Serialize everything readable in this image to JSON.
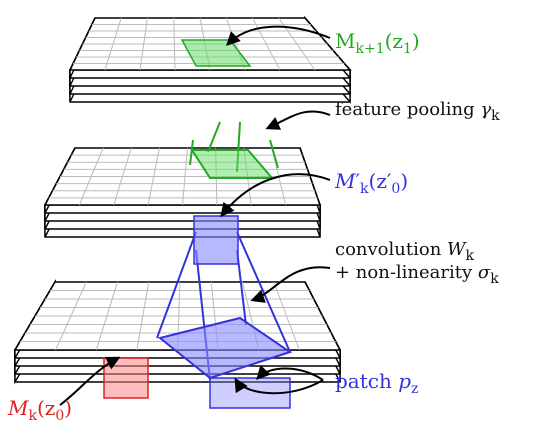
{
  "labels": {
    "top_map": {
      "base": "M",
      "sub": "k+1",
      "arg": "(z",
      "argsub": "1",
      "close": ")"
    },
    "pooling": {
      "text": "feature pooling ",
      "sym": "γ",
      "sub": "k"
    },
    "mid_map": {
      "base": "M",
      "prime": "′",
      "sub": "k",
      "arg": "(z′",
      "argsub": "0",
      "close": ")"
    },
    "conv_line1": {
      "text": "convolution ",
      "sym": "W",
      "sub": "k"
    },
    "conv_line2": {
      "text": "+ non-linearity ",
      "sym": "σ",
      "sub": "k"
    },
    "patch": {
      "text": "patch ",
      "sym": "p",
      "sub": "z"
    },
    "bottom_map": {
      "base": "M",
      "sub": "k",
      "arg": "(z",
      "argsub": "0",
      "close": ")"
    }
  },
  "colors": {
    "green": "#22aa22",
    "green_fill": "#66dd66",
    "blue": "#3333dd",
    "blue_fill": "#8888ff",
    "red": "#dd2222",
    "red_fill": "#ff8888",
    "grid": "#bbbbbb",
    "text": "#111111"
  }
}
